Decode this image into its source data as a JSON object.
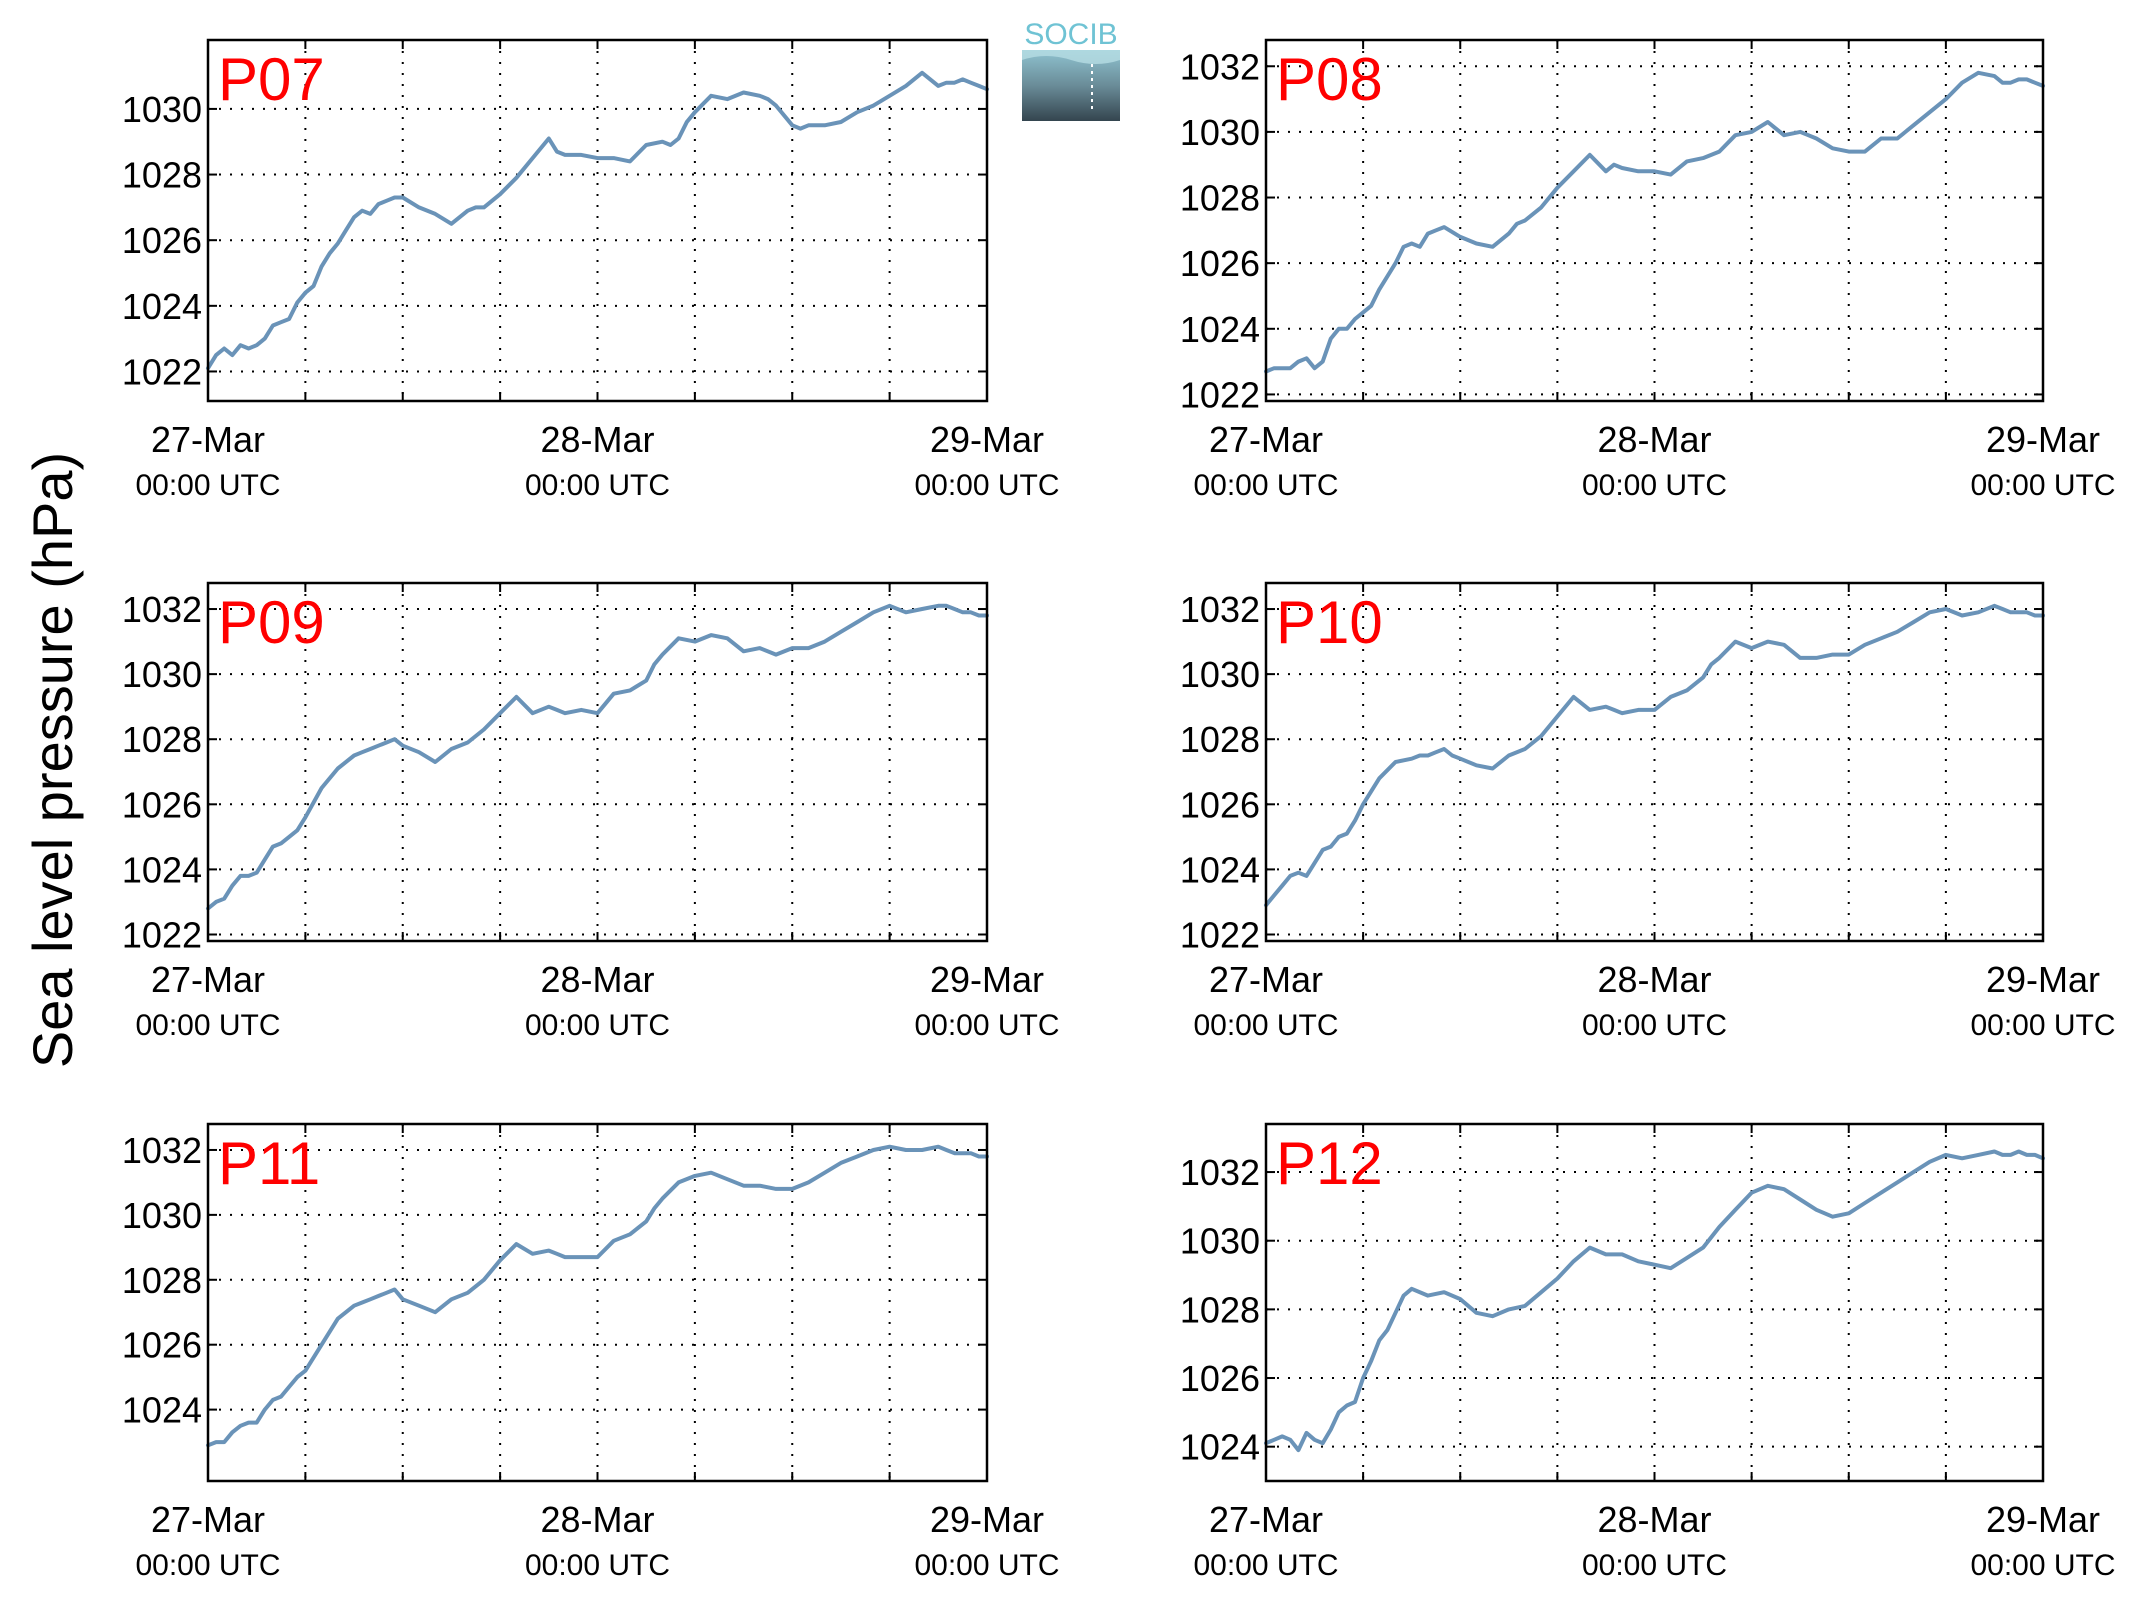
{
  "figure": {
    "ylabel": "Sea level pressure (hPa)",
    "logo_text": "SOCIB",
    "line_color": "#6a93b8",
    "label_color": "#ff0000"
  },
  "chart_data": [
    {
      "type": "line",
      "title": "P07",
      "xticks": [
        {
          "t": 0,
          "day": "27-Mar",
          "time": "00:00 UTC"
        },
        {
          "t": 24,
          "day": "28-Mar",
          "time": "00:00 UTC"
        },
        {
          "t": 48,
          "day": "29-Mar",
          "time": "00:00 UTC"
        }
      ],
      "yticks": [
        1022,
        1024,
        1026,
        1028,
        1030
      ],
      "xlim": [
        0,
        48
      ],
      "ylim": [
        1021.1,
        1032.1
      ],
      "grid": true,
      "series": [
        {
          "x_hours": [
            0,
            0.5,
            1,
            1.5,
            2,
            2.5,
            3,
            3.5,
            4,
            4.5,
            5,
            5.5,
            6,
            6.5,
            7,
            7.5,
            8,
            8.5,
            9,
            9.5,
            10,
            10.5,
            11,
            11.5,
            12,
            13,
            14,
            15,
            16,
            16.5,
            17,
            17.5,
            18,
            19,
            20,
            21,
            21.5,
            22,
            23,
            24,
            25,
            26,
            27,
            28,
            28.5,
            29,
            29.5,
            30,
            31,
            32,
            33,
            34,
            34.5,
            35,
            36,
            36.5,
            37,
            38,
            39,
            40,
            41,
            42,
            43,
            44,
            45,
            45.5,
            46,
            46.5,
            47,
            47.5,
            48
          ],
          "y": [
            1022.1,
            1022.5,
            1022.7,
            1022.5,
            1022.8,
            1022.7,
            1022.8,
            1023.0,
            1023.4,
            1023.5,
            1023.6,
            1024.1,
            1024.4,
            1024.6,
            1025.2,
            1025.6,
            1025.9,
            1026.3,
            1026.7,
            1026.9,
            1026.8,
            1027.1,
            1027.2,
            1027.3,
            1027.3,
            1027.0,
            1026.8,
            1026.5,
            1026.9,
            1027.0,
            1027.0,
            1027.2,
            1027.4,
            1027.9,
            1028.5,
            1029.1,
            1028.7,
            1028.6,
            1028.6,
            1028.5,
            1028.5,
            1028.4,
            1028.9,
            1029.0,
            1028.9,
            1029.1,
            1029.6,
            1029.9,
            1030.4,
            1030.3,
            1030.5,
            1030.4,
            1030.3,
            1030.1,
            1029.5,
            1029.4,
            1029.5,
            1029.5,
            1029.6,
            1029.9,
            1030.1,
            1030.4,
            1030.7,
            1031.1,
            1030.7,
            1030.8,
            1030.8,
            1030.9,
            1030.8,
            1030.7,
            1030.6
          ]
        }
      ]
    },
    {
      "type": "line",
      "title": "P08",
      "xticks": [
        {
          "t": 0,
          "day": "27-Mar",
          "time": "00:00 UTC"
        },
        {
          "t": 24,
          "day": "28-Mar",
          "time": "00:00 UTC"
        },
        {
          "t": 48,
          "day": "29-Mar",
          "time": "00:00 UTC"
        }
      ],
      "yticks": [
        1022,
        1024,
        1026,
        1028,
        1030,
        1032
      ],
      "xlim": [
        0,
        48
      ],
      "ylim": [
        1021.8,
        1032.8
      ],
      "grid": true,
      "series": [
        {
          "x_hours": [
            0,
            0.5,
            1,
            1.5,
            2,
            2.5,
            3,
            3.5,
            4,
            4.5,
            5,
            5.5,
            6,
            6.5,
            7,
            7.5,
            8,
            8.5,
            9,
            9.5,
            10,
            10.5,
            11,
            12,
            13,
            14,
            15,
            15.5,
            16,
            17,
            18,
            19,
            20,
            21,
            21.5,
            22,
            23,
            24,
            25,
            26,
            27,
            27.5,
            28,
            29,
            30,
            31,
            32,
            33,
            33.5,
            34,
            35,
            36,
            37,
            38,
            39,
            40,
            41,
            42,
            43,
            44,
            45,
            45.5,
            46,
            46.5,
            47,
            47.5,
            48
          ],
          "y": [
            1022.7,
            1022.8,
            1022.8,
            1022.8,
            1023.0,
            1023.1,
            1022.8,
            1023.0,
            1023.7,
            1024.0,
            1024.0,
            1024.3,
            1024.5,
            1024.7,
            1025.2,
            1025.6,
            1026.0,
            1026.5,
            1026.6,
            1026.5,
            1026.9,
            1027.0,
            1027.1,
            1026.8,
            1026.6,
            1026.5,
            1026.9,
            1027.2,
            1027.3,
            1027.7,
            1028.3,
            1028.8,
            1029.3,
            1028.8,
            1029.0,
            1028.9,
            1028.8,
            1028.8,
            1028.7,
            1029.1,
            1029.2,
            1029.3,
            1029.4,
            1029.9,
            1030.0,
            1030.3,
            1029.9,
            1030.0,
            1029.9,
            1029.8,
            1029.5,
            1029.4,
            1029.4,
            1029.8,
            1029.8,
            1030.2,
            1030.6,
            1031.0,
            1031.5,
            1031.8,
            1031.7,
            1031.5,
            1031.5,
            1031.6,
            1031.6,
            1031.5,
            1031.4
          ]
        }
      ]
    },
    {
      "type": "line",
      "title": "P09",
      "xticks": [
        {
          "t": 0,
          "day": "27-Mar",
          "time": "00:00 UTC"
        },
        {
          "t": 24,
          "day": "28-Mar",
          "time": "00:00 UTC"
        },
        {
          "t": 48,
          "day": "29-Mar",
          "time": "00:00 UTC"
        }
      ],
      "yticks": [
        1022,
        1024,
        1026,
        1028,
        1030,
        1032
      ],
      "xlim": [
        0,
        48
      ],
      "ylim": [
        1021.8,
        1032.8
      ],
      "grid": true,
      "series": [
        {
          "x_hours": [
            0,
            0.5,
            1,
            1.5,
            2,
            2.5,
            3,
            3.5,
            4,
            4.5,
            5,
            5.5,
            6,
            7,
            8,
            9,
            9.5,
            10,
            10.5,
            11,
            11.5,
            12,
            13,
            14,
            15,
            16,
            17,
            18,
            19,
            20,
            21,
            21.5,
            22,
            23,
            24,
            25,
            26,
            27,
            27.5,
            28,
            29,
            30,
            31,
            32,
            33,
            34,
            35,
            36,
            37,
            38,
            39,
            40,
            41,
            42,
            43,
            44,
            45,
            45.5,
            46,
            46.5,
            47,
            47.5,
            48
          ],
          "y": [
            1022.8,
            1023.0,
            1023.1,
            1023.5,
            1023.8,
            1023.8,
            1023.9,
            1024.3,
            1024.7,
            1024.8,
            1025.0,
            1025.2,
            1025.6,
            1026.5,
            1027.1,
            1027.5,
            1027.6,
            1027.7,
            1027.8,
            1027.9,
            1028.0,
            1027.8,
            1027.6,
            1027.3,
            1027.7,
            1027.9,
            1028.3,
            1028.8,
            1029.3,
            1028.8,
            1029.0,
            1028.9,
            1028.8,
            1028.9,
            1028.8,
            1029.4,
            1029.5,
            1029.8,
            1030.3,
            1030.6,
            1031.1,
            1031.0,
            1031.2,
            1031.1,
            1030.7,
            1030.8,
            1030.6,
            1030.8,
            1030.8,
            1031.0,
            1031.3,
            1031.6,
            1031.9,
            1032.1,
            1031.9,
            1032.0,
            1032.1,
            1032.1,
            1032.0,
            1031.9,
            1031.9,
            1031.8,
            1031.8
          ]
        }
      ]
    },
    {
      "type": "line",
      "title": "P10",
      "xticks": [
        {
          "t": 0,
          "day": "27-Mar",
          "time": "00:00 UTC"
        },
        {
          "t": 24,
          "day": "28-Mar",
          "time": "00:00 UTC"
        },
        {
          "t": 48,
          "day": "29-Mar",
          "time": "00:00 UTC"
        }
      ],
      "yticks": [
        1022,
        1024,
        1026,
        1028,
        1030,
        1032
      ],
      "xlim": [
        0,
        48
      ],
      "ylim": [
        1021.8,
        1032.8
      ],
      "grid": true,
      "series": [
        {
          "x_hours": [
            0,
            0.5,
            1,
            1.5,
            2,
            2.5,
            3,
            3.5,
            4,
            4.5,
            5,
            5.5,
            6,
            7,
            8,
            9,
            9.5,
            10,
            10.5,
            11,
            11.5,
            12,
            13,
            14,
            15,
            16,
            17,
            18,
            19,
            20,
            21,
            21.5,
            22,
            23,
            24,
            25,
            26,
            27,
            27.5,
            28,
            29,
            30,
            31,
            32,
            33,
            34,
            35,
            36,
            37,
            38,
            39,
            40,
            41,
            42,
            43,
            44,
            45,
            45.5,
            46,
            46.5,
            47,
            47.5,
            48
          ],
          "y": [
            1022.9,
            1023.2,
            1023.5,
            1023.8,
            1023.9,
            1023.8,
            1024.2,
            1024.6,
            1024.7,
            1025.0,
            1025.1,
            1025.5,
            1026.0,
            1026.8,
            1027.3,
            1027.4,
            1027.5,
            1027.5,
            1027.6,
            1027.7,
            1027.5,
            1027.4,
            1027.2,
            1027.1,
            1027.5,
            1027.7,
            1028.1,
            1028.7,
            1029.3,
            1028.9,
            1029.0,
            1028.9,
            1028.8,
            1028.9,
            1028.9,
            1029.3,
            1029.5,
            1029.9,
            1030.3,
            1030.5,
            1031.0,
            1030.8,
            1031.0,
            1030.9,
            1030.5,
            1030.5,
            1030.6,
            1030.6,
            1030.9,
            1031.1,
            1031.3,
            1031.6,
            1031.9,
            1032.0,
            1031.8,
            1031.9,
            1032.1,
            1032.0,
            1031.9,
            1031.9,
            1031.9,
            1031.8,
            1031.8
          ]
        }
      ]
    },
    {
      "type": "line",
      "title": "P11",
      "xticks": [
        {
          "t": 0,
          "day": "27-Mar",
          "time": "00:00 UTC"
        },
        {
          "t": 24,
          "day": "28-Mar",
          "time": "00:00 UTC"
        },
        {
          "t": 48,
          "day": "29-Mar",
          "time": "00:00 UTC"
        }
      ],
      "yticks": [
        1024,
        1026,
        1028,
        1030,
        1032
      ],
      "xlim": [
        0,
        48
      ],
      "ylim": [
        1021.8,
        1032.8
      ],
      "grid": true,
      "series": [
        {
          "x_hours": [
            0,
            0.5,
            1,
            1.5,
            2,
            2.5,
            3,
            3.5,
            4,
            4.5,
            5,
            5.5,
            6,
            7,
            8,
            9,
            9.5,
            10,
            10.5,
            11,
            11.5,
            12,
            13,
            14,
            15,
            16,
            17,
            18,
            19,
            20,
            21,
            21.5,
            22,
            23,
            24,
            25,
            26,
            27,
            27.5,
            28,
            29,
            30,
            31,
            32,
            33,
            34,
            35,
            36,
            37,
            38,
            39,
            40,
            41,
            42,
            43,
            44,
            45,
            45.5,
            46,
            46.5,
            47,
            47.5,
            48
          ],
          "y": [
            1022.9,
            1023.0,
            1023.0,
            1023.3,
            1023.5,
            1023.6,
            1023.6,
            1024.0,
            1024.3,
            1024.4,
            1024.7,
            1025.0,
            1025.2,
            1026.0,
            1026.8,
            1027.2,
            1027.3,
            1027.4,
            1027.5,
            1027.6,
            1027.7,
            1027.4,
            1027.2,
            1027.0,
            1027.4,
            1027.6,
            1028.0,
            1028.6,
            1029.1,
            1028.8,
            1028.9,
            1028.8,
            1028.7,
            1028.7,
            1028.7,
            1029.2,
            1029.4,
            1029.8,
            1030.2,
            1030.5,
            1031.0,
            1031.2,
            1031.3,
            1031.1,
            1030.9,
            1030.9,
            1030.8,
            1030.8,
            1031.0,
            1031.3,
            1031.6,
            1031.8,
            1032.0,
            1032.1,
            1032.0,
            1032.0,
            1032.1,
            1032.0,
            1031.9,
            1031.9,
            1031.9,
            1031.8,
            1031.8
          ]
        }
      ]
    },
    {
      "type": "line",
      "title": "P12",
      "xticks": [
        {
          "t": 0,
          "day": "27-Mar",
          "time": "00:00 UTC"
        },
        {
          "t": 24,
          "day": "28-Mar",
          "time": "00:00 UTC"
        },
        {
          "t": 48,
          "day": "29-Mar",
          "time": "00:00 UTC"
        }
      ],
      "yticks": [
        1024,
        1026,
        1028,
        1030,
        1032
      ],
      "xlim": [
        0,
        48
      ],
      "ylim": [
        1023.0,
        1033.4
      ],
      "grid": true,
      "series": [
        {
          "x_hours": [
            0,
            0.5,
            1,
            1.5,
            2,
            2.5,
            3,
            3.5,
            4,
            4.5,
            5,
            5.5,
            6,
            6.5,
            7,
            7.5,
            8,
            8.5,
            9,
            10,
            11,
            12,
            13,
            14,
            15,
            16,
            17,
            18,
            19,
            20,
            21,
            22,
            23,
            24,
            25,
            26,
            27,
            28,
            29,
            30,
            31,
            32,
            33,
            34,
            35,
            36,
            37,
            38,
            39,
            40,
            41,
            42,
            43,
            44,
            45,
            45.5,
            46,
            46.5,
            47,
            47.5,
            48
          ],
          "y": [
            1024.1,
            1024.2,
            1024.3,
            1024.2,
            1023.9,
            1024.4,
            1024.2,
            1024.1,
            1024.5,
            1025.0,
            1025.2,
            1025.3,
            1026.0,
            1026.5,
            1027.1,
            1027.4,
            1027.9,
            1028.4,
            1028.6,
            1028.4,
            1028.5,
            1028.3,
            1027.9,
            1027.8,
            1028.0,
            1028.1,
            1028.5,
            1028.9,
            1029.4,
            1029.8,
            1029.6,
            1029.6,
            1029.4,
            1029.3,
            1029.2,
            1029.5,
            1029.8,
            1030.4,
            1030.9,
            1031.4,
            1031.6,
            1031.5,
            1031.2,
            1030.9,
            1030.7,
            1030.8,
            1031.1,
            1031.4,
            1031.7,
            1032.0,
            1032.3,
            1032.5,
            1032.4,
            1032.5,
            1032.6,
            1032.5,
            1032.5,
            1032.6,
            1032.5,
            1032.5,
            1032.4
          ]
        }
      ]
    }
  ]
}
